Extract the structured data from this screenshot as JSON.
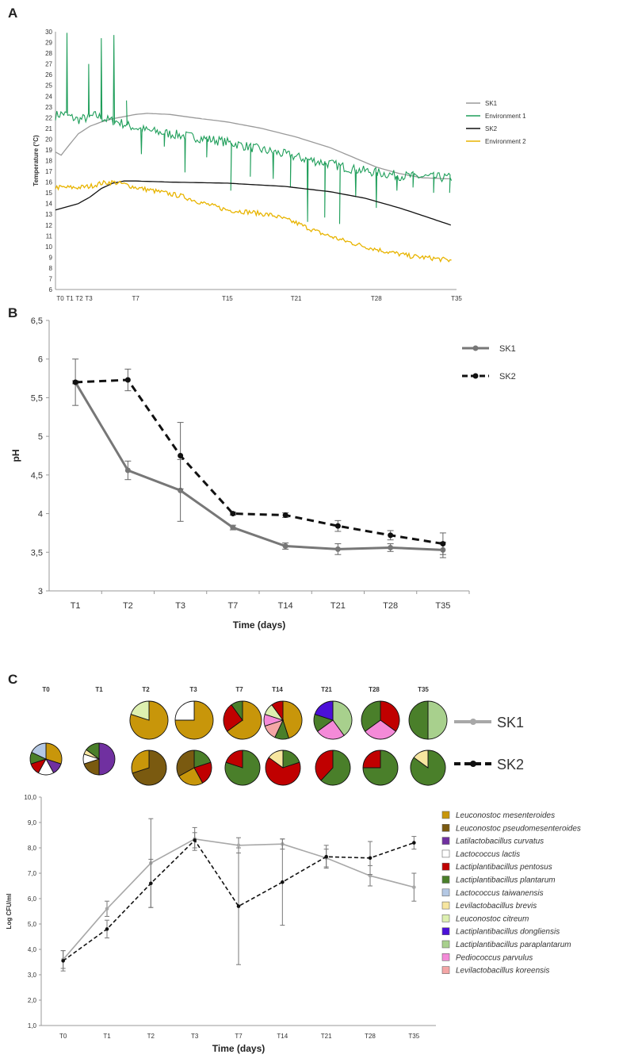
{
  "panels": {
    "a": "A",
    "b": "B",
    "c": "C"
  },
  "colors": {
    "sk1": "#9a9a9a",
    "env1": "#1f9e5a",
    "sk2": "#111111",
    "env2": "#e8b400",
    "sk1_b": "#777777",
    "sk1_c": "#a8a8a8"
  },
  "chart_data": [
    {
      "type": "line",
      "id": "A",
      "title": "",
      "ylabel": "Temperature (°C)",
      "xlabel": "",
      "ylim": [
        6,
        30
      ],
      "xlim": [
        0,
        35
      ],
      "yticks": [
        "6",
        "7",
        "8",
        "9",
        "10",
        "11",
        "12",
        "13",
        "14",
        "15",
        "16",
        "17",
        "18",
        "19",
        "20",
        "21",
        "22",
        "23",
        "24",
        "25",
        "26",
        "27",
        "28",
        "29",
        "30"
      ],
      "xticks": [
        {
          "label": "T0",
          "x": 0
        },
        {
          "label": "T1",
          "x": 1
        },
        {
          "label": "T2",
          "x": 2
        },
        {
          "label": "T3",
          "x": 3
        },
        {
          "label": "T7",
          "x": 7
        },
        {
          "label": "T15",
          "x": 15
        },
        {
          "label": "T21",
          "x": 21
        },
        {
          "label": "T28",
          "x": 28
        },
        {
          "label": "T35",
          "x": 35
        }
      ],
      "legend_position": "right",
      "series": [
        {
          "name": "SK1",
          "key": "sk1",
          "x": [
            0,
            0.5,
            1,
            2,
            3,
            4,
            5,
            6,
            7,
            8,
            10,
            12,
            15,
            18,
            21,
            24,
            26,
            28,
            30,
            32,
            34.5
          ],
          "y": [
            18.8,
            18.5,
            19.2,
            20.5,
            21.2,
            21.6,
            21.9,
            22.1,
            22.3,
            22.4,
            22.3,
            22.0,
            21.6,
            21.0,
            20.2,
            19.2,
            18.3,
            17.4,
            16.8,
            16.4,
            16.3
          ]
        },
        {
          "name": "Environment 1",
          "key": "env1",
          "x": [
            0,
            0.7,
            1.2,
            2,
            2.8,
            3.5,
            4.5,
            5.5,
            6.5,
            8,
            10,
            12,
            14,
            16,
            18,
            20,
            22,
            24,
            26,
            28,
            30,
            32,
            34.5
          ],
          "y": [
            22.2,
            22.4,
            22.1,
            21.8,
            22.0,
            22.2,
            21.8,
            21.6,
            21.2,
            20.8,
            20.5,
            20.2,
            19.9,
            19.5,
            19.0,
            18.6,
            18.1,
            17.7,
            17.2,
            16.9,
            16.6,
            16.5,
            16.4
          ],
          "spikes": [
            {
              "x": 1.0,
              "y": 29.9
            },
            {
              "x": 2.9,
              "y": 27.0
            },
            {
              "x": 4.0,
              "y": 29.4
            },
            {
              "x": 5.1,
              "y": 29.7
            },
            {
              "x": 6.2,
              "y": 23.6
            }
          ],
          "dips": [
            {
              "x": 7.5,
              "y": 18.6
            },
            {
              "x": 9.5,
              "y": 19.3
            },
            {
              "x": 11.3,
              "y": 16.9
            },
            {
              "x": 13.2,
              "y": 18.3
            },
            {
              "x": 15.3,
              "y": 15.2
            },
            {
              "x": 17.0,
              "y": 16.5
            },
            {
              "x": 19.0,
              "y": 16.3
            },
            {
              "x": 20.5,
              "y": 15.5
            },
            {
              "x": 22.0,
              "y": 12.3
            },
            {
              "x": 23.5,
              "y": 12.7
            },
            {
              "x": 24.8,
              "y": 12.1
            },
            {
              "x": 26.2,
              "y": 14.6
            },
            {
              "x": 28.0,
              "y": 13.6
            },
            {
              "x": 29.8,
              "y": 15.2
            },
            {
              "x": 31.2,
              "y": 15.5
            },
            {
              "x": 33.0,
              "y": 15.0
            },
            {
              "x": 34.4,
              "y": 15.0
            }
          ]
        },
        {
          "name": "SK2",
          "key": "sk2",
          "x": [
            0,
            2,
            3,
            4,
            5,
            6,
            7,
            10,
            15,
            20,
            24,
            27,
            30,
            32,
            34.5
          ],
          "y": [
            13.4,
            14.0,
            14.6,
            15.4,
            15.9,
            16.1,
            16.1,
            16.0,
            15.9,
            15.6,
            15.1,
            14.5,
            13.6,
            12.9,
            12.0
          ]
        },
        {
          "name": "Environment 2",
          "key": "env2",
          "x": [
            0,
            2,
            3,
            4,
            5,
            6,
            7,
            9,
            11,
            13,
            15,
            17,
            19,
            21,
            23,
            25,
            27,
            29,
            31,
            33,
            34.5
          ],
          "y": [
            15.5,
            15.5,
            15.6,
            15.9,
            16.0,
            15.8,
            15.5,
            15.1,
            14.7,
            14.0,
            13.4,
            13.2,
            12.9,
            12.2,
            11.3,
            10.6,
            10.0,
            9.5,
            9.1,
            8.9,
            8.7
          ]
        }
      ]
    },
    {
      "type": "line",
      "id": "B",
      "title": "",
      "ylabel": "pH",
      "xlabel": "Time (days)",
      "ylim": [
        3,
        6.5
      ],
      "yticks": [
        "3",
        "3,5",
        "4",
        "4,5",
        "5",
        "5,5",
        "6",
        "6,5"
      ],
      "categories": [
        "T1",
        "T2",
        "T3",
        "T7",
        "T14",
        "T21",
        "T28",
        "T35"
      ],
      "legend_position": "top-right",
      "series": [
        {
          "name": "SK1",
          "key": "sk1_b",
          "style": "solid",
          "values": [
            5.7,
            4.56,
            4.3,
            3.82,
            3.58,
            3.54,
            3.56,
            3.53
          ],
          "error": [
            0.3,
            0.12,
            0.4,
            0.03,
            0.04,
            0.07,
            0.05,
            0.1
          ]
        },
        {
          "name": "SK2",
          "key": "sk2",
          "style": "dashed",
          "values": [
            5.7,
            5.73,
            4.75,
            4.0,
            3.98,
            3.84,
            3.72,
            3.61
          ],
          "error": [
            0.02,
            0.14,
            0.43,
            0.02,
            0.03,
            0.07,
            0.06,
            0.14
          ]
        }
      ]
    },
    {
      "type": "line",
      "id": "C",
      "title": "",
      "ylabel": "Log CFU/ml",
      "xlabel": "Time (days)",
      "ylim": [
        1,
        10
      ],
      "yticks": [
        "1,0",
        "2,0",
        "3,0",
        "4,0",
        "5,0",
        "6,0",
        "7,0",
        "8,0",
        "9,0",
        "10,0"
      ],
      "categories": [
        "T0",
        "T1",
        "T2",
        "T3",
        "T7",
        "T14",
        "T21",
        "T28",
        "T35"
      ],
      "legend_position": "right",
      "series": [
        {
          "name": "SK1",
          "key": "sk1_c",
          "style": "solid",
          "values": [
            3.6,
            5.6,
            7.4,
            8.35,
            8.1,
            8.15,
            7.6,
            6.9,
            6.45
          ],
          "error": [
            0.35,
            0.3,
            1.75,
            0.45,
            0.3,
            0.2,
            0.35,
            0.4,
            0.55
          ]
        },
        {
          "name": "SK2",
          "key": "sk2",
          "style": "dashed",
          "values": [
            3.55,
            4.8,
            6.6,
            8.3,
            5.7,
            6.65,
            7.65,
            7.6,
            8.2
          ],
          "error": [
            0.4,
            0.35,
            0.95,
            0.3,
            2.3,
            1.7,
            0.45,
            0.65,
            0.25
          ]
        }
      ],
      "pie_legend": [
        {
          "name": "Leuconostoc mesenteroides",
          "color": "#c8960a"
        },
        {
          "name": "Leuconostoc pseudomesenteroides",
          "color": "#7a5a10"
        },
        {
          "name": "Latilactobacillus curvatus",
          "color": "#7030a0"
        },
        {
          "name": "Lactococcus lactis",
          "color": "#ffffff"
        },
        {
          "name": "Lactiplantibacillus pentosus",
          "color": "#c00000"
        },
        {
          "name": "Lactiplantibacillus plantarum",
          "color": "#4a7f2a"
        },
        {
          "name": "Lactococcus taiwanensis",
          "color": "#b4c8e4"
        },
        {
          "name": "Levilactobacillus brevis",
          "color": "#f7e6a0"
        },
        {
          "name": "Leuconostoc citreum",
          "color": "#ddf0b0"
        },
        {
          "name": "Lactiplantibacillus dongliensis",
          "color": "#4b10d8"
        },
        {
          "name": "Lactiplantibacillus paraplantarum",
          "color": "#a8d08d"
        },
        {
          "name": "Pediococcus parvulus",
          "color": "#f48ad8"
        },
        {
          "name": "Levilactobacillus koreensis",
          "color": "#f4a6a6"
        }
      ],
      "pie_labels": [
        "T0",
        "T1",
        "T2",
        "T3",
        "T7",
        "T14",
        "T21",
        "T28",
        "T35"
      ],
      "pie_rows": [
        {
          "name": "SK1",
          "pies": [
            null,
            null,
            [
              {
                "s": "Leuconostoc mesenteroides",
                "v": 80
              },
              {
                "s": "Leuconostoc citreum",
                "v": 20
              }
            ],
            [
              {
                "s": "Leuconostoc mesenteroides",
                "v": 75
              },
              {
                "s": "Lactococcus lactis",
                "v": 25
              }
            ],
            [
              {
                "s": "Leuconostoc mesenteroides",
                "v": 65
              },
              {
                "s": "Lactiplantibacillus pentosus",
                "v": 25
              },
              {
                "s": "Lactiplantibacillus plantarum",
                "v": 10
              }
            ],
            [
              {
                "s": "Leuconostoc mesenteroides",
                "v": 45
              },
              {
                "s": "Lactiplantibacillus plantarum",
                "v": 12
              },
              {
                "s": "Levilactobacillus koreensis",
                "v": 13
              },
              {
                "s": "Pediococcus parvulus",
                "v": 10
              },
              {
                "s": "Leuconostoc citreum",
                "v": 10
              },
              {
                "s": "Lactiplantibacillus pentosus",
                "v": 10
              }
            ],
            [
              {
                "s": "Lactiplantibacillus paraplantarum",
                "v": 40
              },
              {
                "s": "Pediococcus parvulus",
                "v": 25
              },
              {
                "s": "Lactiplantibacillus plantarum",
                "v": 15
              },
              {
                "s": "Lactiplantibacillus dongliensis",
                "v": 20
              }
            ],
            [
              {
                "s": "Lactiplantibacillus pentosus",
                "v": 35
              },
              {
                "s": "Pediococcus parvulus",
                "v": 30
              },
              {
                "s": "Lactiplantibacillus plantarum",
                "v": 35
              }
            ],
            [
              {
                "s": "Lactiplantibacillus paraplantarum",
                "v": 50
              },
              {
                "s": "Lactiplantibacillus plantarum",
                "v": 50
              }
            ]
          ]
        },
        {
          "name": "SK2",
          "pies": [
            [
              {
                "s": "Leuconostoc mesenteroides",
                "v": 30
              },
              {
                "s": "Latilactobacillus curvatus",
                "v": 12
              },
              {
                "s": "Lactococcus lactis",
                "v": 16
              },
              {
                "s": "Lactiplantibacillus pentosus",
                "v": 12
              },
              {
                "s": "Lactiplantibacillus plantarum",
                "v": 12
              },
              {
                "s": "Lactococcus taiwanensis",
                "v": 18
              }
            ],
            [
              {
                "s": "Latilactobacillus curvatus",
                "v": 50
              },
              {
                "s": "Leuconostoc pseudomesenteroides",
                "v": 20
              },
              {
                "s": "Lactococcus lactis",
                "v": 10
              },
              {
                "s": "Levilactobacillus brevis",
                "v": 5
              },
              {
                "s": "Lactiplantibacillus plantarum",
                "v": 15
              }
            ],
            [
              {
                "s": "Leuconostoc pseudomesenteroides",
                "v": 70
              },
              {
                "s": "Leuconostoc mesenteroides",
                "v": 30
              }
            ],
            [
              {
                "s": "Lactiplantibacillus plantarum",
                "v": 20
              },
              {
                "s": "Lactiplantibacillus pentosus",
                "v": 22
              },
              {
                "s": "Leuconostoc mesenteroides",
                "v": 25
              },
              {
                "s": "Leuconostoc pseudomesenteroides",
                "v": 33
              }
            ],
            [
              {
                "s": "Lactiplantibacillus plantarum",
                "v": 80
              },
              {
                "s": "Lactiplantibacillus pentosus",
                "v": 20
              }
            ],
            [
              {
                "s": "Lactiplantibacillus plantarum",
                "v": 20
              },
              {
                "s": "Lactiplantibacillus pentosus",
                "v": 65
              },
              {
                "s": "Levilactobacillus brevis",
                "v": 15
              }
            ],
            [
              {
                "s": "Lactiplantibacillus plantarum",
                "v": 62
              },
              {
                "s": "Lactiplantibacillus pentosus",
                "v": 38
              }
            ],
            [
              {
                "s": "Lactiplantibacillus plantarum",
                "v": 75
              },
              {
                "s": "Lactiplantibacillus pentosus",
                "v": 25
              }
            ],
            [
              {
                "s": "Lactiplantibacillus plantarum",
                "v": 85
              },
              {
                "s": "Levilactobacillus brevis",
                "v": 15
              }
            ]
          ]
        }
      ]
    }
  ]
}
